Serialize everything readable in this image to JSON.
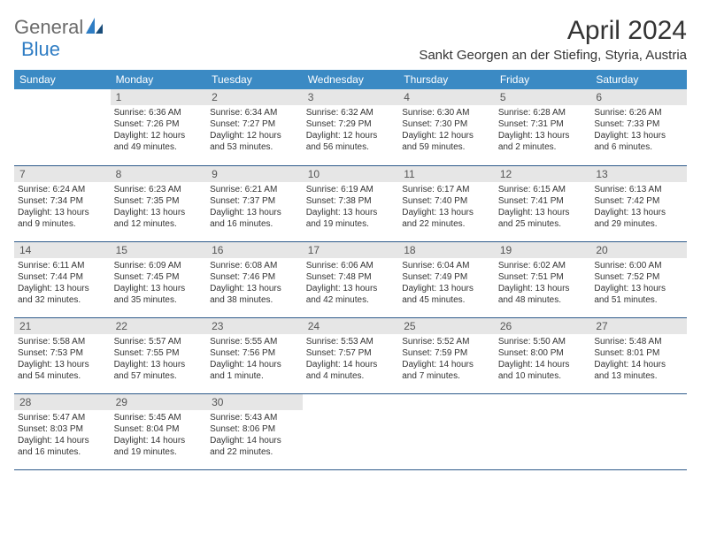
{
  "logo": {
    "text1": "General",
    "text2": "Blue"
  },
  "title": "April 2024",
  "location": "Sankt Georgen an der Stiefing, Styria, Austria",
  "header_bg": "#3b8ac4",
  "header_text": "#ffffff",
  "daynum_bg": "#e6e6e6",
  "border_color": "#2d5a8a",
  "weekdays": [
    "Sunday",
    "Monday",
    "Tuesday",
    "Wednesday",
    "Thursday",
    "Friday",
    "Saturday"
  ],
  "weeks": [
    [
      {
        "blank": true
      },
      {
        "num": "1",
        "sunrise": "Sunrise: 6:36 AM",
        "sunset": "Sunset: 7:26 PM",
        "day1": "Daylight: 12 hours",
        "day2": "and 49 minutes."
      },
      {
        "num": "2",
        "sunrise": "Sunrise: 6:34 AM",
        "sunset": "Sunset: 7:27 PM",
        "day1": "Daylight: 12 hours",
        "day2": "and 53 minutes."
      },
      {
        "num": "3",
        "sunrise": "Sunrise: 6:32 AM",
        "sunset": "Sunset: 7:29 PM",
        "day1": "Daylight: 12 hours",
        "day2": "and 56 minutes."
      },
      {
        "num": "4",
        "sunrise": "Sunrise: 6:30 AM",
        "sunset": "Sunset: 7:30 PM",
        "day1": "Daylight: 12 hours",
        "day2": "and 59 minutes."
      },
      {
        "num": "5",
        "sunrise": "Sunrise: 6:28 AM",
        "sunset": "Sunset: 7:31 PM",
        "day1": "Daylight: 13 hours",
        "day2": "and 2 minutes."
      },
      {
        "num": "6",
        "sunrise": "Sunrise: 6:26 AM",
        "sunset": "Sunset: 7:33 PM",
        "day1": "Daylight: 13 hours",
        "day2": "and 6 minutes."
      }
    ],
    [
      {
        "num": "7",
        "sunrise": "Sunrise: 6:24 AM",
        "sunset": "Sunset: 7:34 PM",
        "day1": "Daylight: 13 hours",
        "day2": "and 9 minutes."
      },
      {
        "num": "8",
        "sunrise": "Sunrise: 6:23 AM",
        "sunset": "Sunset: 7:35 PM",
        "day1": "Daylight: 13 hours",
        "day2": "and 12 minutes."
      },
      {
        "num": "9",
        "sunrise": "Sunrise: 6:21 AM",
        "sunset": "Sunset: 7:37 PM",
        "day1": "Daylight: 13 hours",
        "day2": "and 16 minutes."
      },
      {
        "num": "10",
        "sunrise": "Sunrise: 6:19 AM",
        "sunset": "Sunset: 7:38 PM",
        "day1": "Daylight: 13 hours",
        "day2": "and 19 minutes."
      },
      {
        "num": "11",
        "sunrise": "Sunrise: 6:17 AM",
        "sunset": "Sunset: 7:40 PM",
        "day1": "Daylight: 13 hours",
        "day2": "and 22 minutes."
      },
      {
        "num": "12",
        "sunrise": "Sunrise: 6:15 AM",
        "sunset": "Sunset: 7:41 PM",
        "day1": "Daylight: 13 hours",
        "day2": "and 25 minutes."
      },
      {
        "num": "13",
        "sunrise": "Sunrise: 6:13 AM",
        "sunset": "Sunset: 7:42 PM",
        "day1": "Daylight: 13 hours",
        "day2": "and 29 minutes."
      }
    ],
    [
      {
        "num": "14",
        "sunrise": "Sunrise: 6:11 AM",
        "sunset": "Sunset: 7:44 PM",
        "day1": "Daylight: 13 hours",
        "day2": "and 32 minutes."
      },
      {
        "num": "15",
        "sunrise": "Sunrise: 6:09 AM",
        "sunset": "Sunset: 7:45 PM",
        "day1": "Daylight: 13 hours",
        "day2": "and 35 minutes."
      },
      {
        "num": "16",
        "sunrise": "Sunrise: 6:08 AM",
        "sunset": "Sunset: 7:46 PM",
        "day1": "Daylight: 13 hours",
        "day2": "and 38 minutes."
      },
      {
        "num": "17",
        "sunrise": "Sunrise: 6:06 AM",
        "sunset": "Sunset: 7:48 PM",
        "day1": "Daylight: 13 hours",
        "day2": "and 42 minutes."
      },
      {
        "num": "18",
        "sunrise": "Sunrise: 6:04 AM",
        "sunset": "Sunset: 7:49 PM",
        "day1": "Daylight: 13 hours",
        "day2": "and 45 minutes."
      },
      {
        "num": "19",
        "sunrise": "Sunrise: 6:02 AM",
        "sunset": "Sunset: 7:51 PM",
        "day1": "Daylight: 13 hours",
        "day2": "and 48 minutes."
      },
      {
        "num": "20",
        "sunrise": "Sunrise: 6:00 AM",
        "sunset": "Sunset: 7:52 PM",
        "day1": "Daylight: 13 hours",
        "day2": "and 51 minutes."
      }
    ],
    [
      {
        "num": "21",
        "sunrise": "Sunrise: 5:58 AM",
        "sunset": "Sunset: 7:53 PM",
        "day1": "Daylight: 13 hours",
        "day2": "and 54 minutes."
      },
      {
        "num": "22",
        "sunrise": "Sunrise: 5:57 AM",
        "sunset": "Sunset: 7:55 PM",
        "day1": "Daylight: 13 hours",
        "day2": "and 57 minutes."
      },
      {
        "num": "23",
        "sunrise": "Sunrise: 5:55 AM",
        "sunset": "Sunset: 7:56 PM",
        "day1": "Daylight: 14 hours",
        "day2": "and 1 minute."
      },
      {
        "num": "24",
        "sunrise": "Sunrise: 5:53 AM",
        "sunset": "Sunset: 7:57 PM",
        "day1": "Daylight: 14 hours",
        "day2": "and 4 minutes."
      },
      {
        "num": "25",
        "sunrise": "Sunrise: 5:52 AM",
        "sunset": "Sunset: 7:59 PM",
        "day1": "Daylight: 14 hours",
        "day2": "and 7 minutes."
      },
      {
        "num": "26",
        "sunrise": "Sunrise: 5:50 AM",
        "sunset": "Sunset: 8:00 PM",
        "day1": "Daylight: 14 hours",
        "day2": "and 10 minutes."
      },
      {
        "num": "27",
        "sunrise": "Sunrise: 5:48 AM",
        "sunset": "Sunset: 8:01 PM",
        "day1": "Daylight: 14 hours",
        "day2": "and 13 minutes."
      }
    ],
    [
      {
        "num": "28",
        "sunrise": "Sunrise: 5:47 AM",
        "sunset": "Sunset: 8:03 PM",
        "day1": "Daylight: 14 hours",
        "day2": "and 16 minutes."
      },
      {
        "num": "29",
        "sunrise": "Sunrise: 5:45 AM",
        "sunset": "Sunset: 8:04 PM",
        "day1": "Daylight: 14 hours",
        "day2": "and 19 minutes."
      },
      {
        "num": "30",
        "sunrise": "Sunrise: 5:43 AM",
        "sunset": "Sunset: 8:06 PM",
        "day1": "Daylight: 14 hours",
        "day2": "and 22 minutes."
      },
      {
        "blank": true
      },
      {
        "blank": true
      },
      {
        "blank": true
      },
      {
        "blank": true
      }
    ]
  ]
}
